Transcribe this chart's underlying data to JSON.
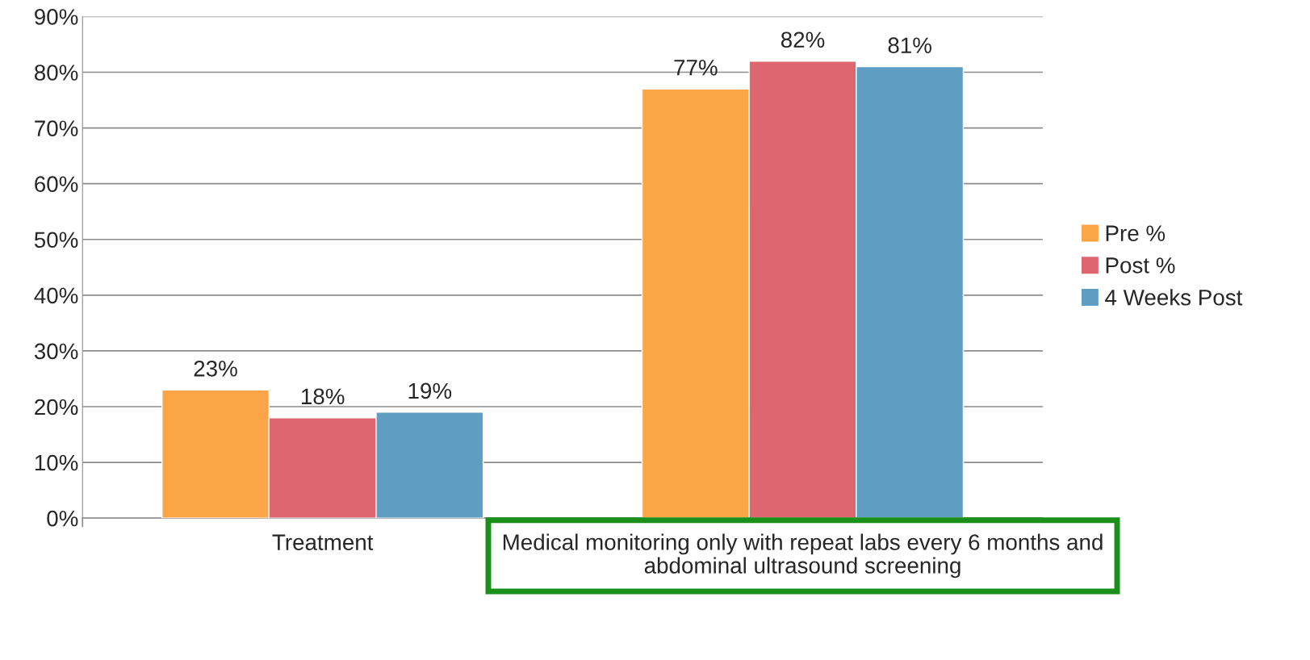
{
  "chart_data": {
    "type": "bar",
    "categories": [
      "Treatment",
      "Medical monitoring only with repeat labs every 6 months and abdominal ultrasound screening"
    ],
    "series": [
      {
        "name": "Pre %",
        "color": "#fca448",
        "values": [
          23,
          77
        ]
      },
      {
        "name": "Post %",
        "color": "#de6670",
        "values": [
          18,
          82
        ]
      },
      {
        "name": "4 Weeks Post",
        "color": "#5f9dc3",
        "values": [
          19,
          81
        ]
      }
    ],
    "ylim": [
      0,
      90
    ],
    "yticks": [
      {
        "value": 0,
        "label": "0%"
      },
      {
        "value": 10,
        "label": "10%"
      },
      {
        "value": 20,
        "label": "20%"
      },
      {
        "value": 30,
        "label": "30%"
      },
      {
        "value": 40,
        "label": "40%"
      },
      {
        "value": 50,
        "label": "50%"
      },
      {
        "value": 60,
        "label": "60%"
      },
      {
        "value": 70,
        "label": "70%"
      },
      {
        "value": 80,
        "label": "80%"
      },
      {
        "value": 90,
        "label": "90%"
      }
    ],
    "value_labels": [
      [
        "23%",
        "77%"
      ],
      [
        "18%",
        "82%"
      ],
      [
        "19%",
        "81%"
      ]
    ],
    "grid": "y",
    "legend": "right"
  }
}
